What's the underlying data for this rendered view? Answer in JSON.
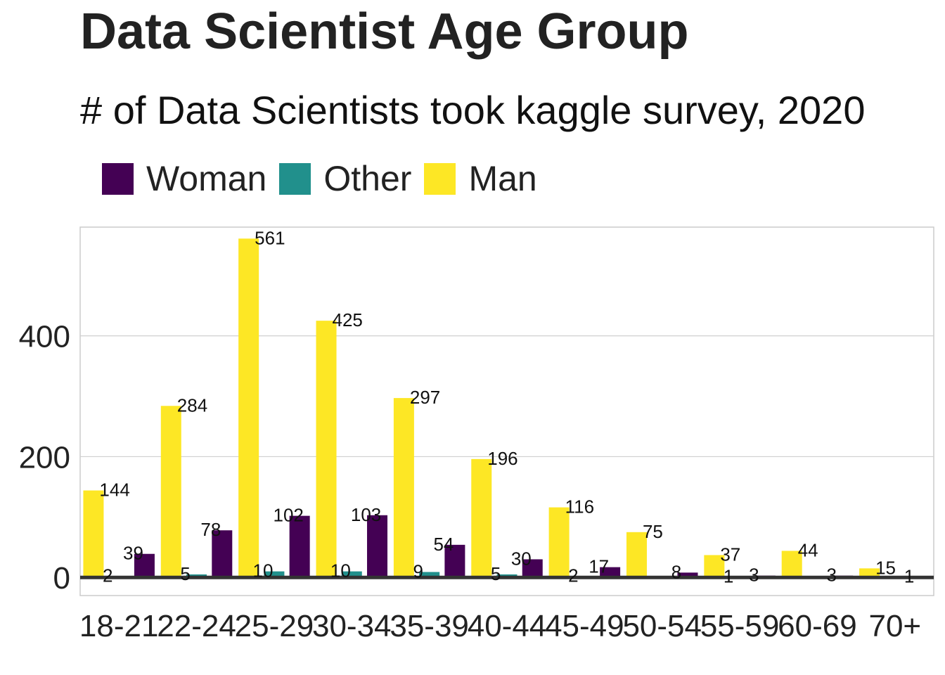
{
  "chart_data": {
    "type": "bar",
    "title": "Data Scientist Age Group",
    "subtitle": "# of Data Scientists took kaggle survey, 2020",
    "xlabel": "",
    "ylabel": "",
    "ylim": [
      -30,
      580
    ],
    "yticks": [
      0,
      200,
      400
    ],
    "grid": true,
    "legend_position": "top-left",
    "categories": [
      "18-21",
      "22-24",
      "25-29",
      "30-34",
      "35-39",
      "40-44",
      "45-49",
      "50-54",
      "55-59",
      "60-69",
      "70+"
    ],
    "series": [
      {
        "name": "Man",
        "color": "#FDE725",
        "values": [
          144,
          284,
          561,
          425,
          297,
          196,
          116,
          75,
          37,
          44,
          15
        ]
      },
      {
        "name": "Other",
        "color": "#21908C",
        "values": [
          2,
          5,
          10,
          10,
          9,
          5,
          2,
          null,
          1,
          null,
          null
        ]
      },
      {
        "name": "Woman",
        "color": "#440154",
        "values": [
          39,
          78,
          102,
          103,
          54,
          30,
          17,
          8,
          3,
          3,
          1
        ]
      }
    ],
    "legend_order": [
      "Woman",
      "Other",
      "Man"
    ]
  }
}
